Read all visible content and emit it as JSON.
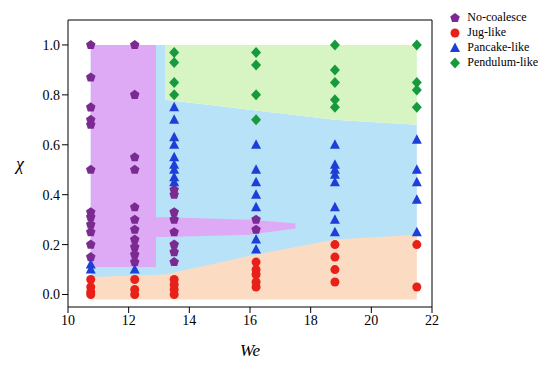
{
  "chart_data": {
    "type": "scatter",
    "x_label": "We",
    "y_label": "χ",
    "xlim": [
      10,
      22
    ],
    "xticks": [
      10,
      12,
      14,
      16,
      18,
      20,
      22
    ],
    "ylim": [
      -0.05,
      1.1
    ],
    "yticks": [
      {
        "value": 0,
        "label": "0.0"
      },
      {
        "value": 0.2,
        "label": "0.2"
      },
      {
        "value": 0.4,
        "label": "0.4"
      },
      {
        "value": 0.6,
        "label": "0.6"
      },
      {
        "value": 0.8,
        "label": "0.8"
      },
      {
        "value": 1,
        "label": "1.0"
      }
    ],
    "grid": false,
    "legend": "top-right",
    "series": [
      {
        "name": "No-coalesce",
        "color": "#7a2a90",
        "marker": "pentagon",
        "x": [
          10.75,
          10.75,
          10.75,
          10.75,
          10.75,
          10.75,
          10.75,
          10.75,
          10.75,
          10.75,
          10.75,
          10.75,
          12.2,
          12.2,
          12.2,
          12.2,
          12.2,
          12.2,
          12.2,
          12.2,
          12.2,
          12.2,
          12.2,
          13.5,
          13.5,
          13.5,
          13.5,
          13.5,
          13.5,
          13.5,
          13.5,
          16.2,
          16.2
        ],
        "values": [
          1.0,
          0.87,
          0.75,
          0.7,
          0.68,
          0.5,
          0.33,
          0.31,
          0.28,
          0.25,
          0.2,
          0.15,
          1.0,
          0.8,
          0.55,
          0.5,
          0.35,
          0.3,
          0.26,
          0.22,
          0.19,
          0.16,
          0.13,
          0.42,
          0.4,
          0.33,
          0.3,
          0.25,
          0.2,
          0.17,
          0.13,
          0.3,
          0.26
        ],
        "region": {
          "color": "#deaaf5",
          "x": [
            10.75,
            12.9,
            12.9,
            13.2,
            16,
            17.5
          ],
          "values": [
            [
              0.11,
              1.0
            ],
            [
              0.11,
              1.0
            ],
            [
              0.23,
              0.31
            ],
            [
              0.23,
              0.31
            ],
            [
              0.24,
              0.3
            ],
            [
              0.265,
              0.285
            ]
          ]
        }
      },
      {
        "name": "Jug-like",
        "color": "#e8201a",
        "marker": "circle",
        "x": [
          10.75,
          10.75,
          10.75,
          10.75,
          12.2,
          12.2,
          12.2,
          13.5,
          13.5,
          13.5,
          13.5,
          16.2,
          16.2,
          16.2,
          16.2,
          16.2,
          18.8,
          18.8,
          18.8,
          18.8,
          21.5,
          21.5
        ],
        "values": [
          0.06,
          0.03,
          0.01,
          0.0,
          0.06,
          0.02,
          0.0,
          0.06,
          0.04,
          0.02,
          0.0,
          0.13,
          0.1,
          0.08,
          0.05,
          0.03,
          0.2,
          0.15,
          0.1,
          0.05,
          0.2,
          0.03
        ],
        "region": {
          "color": "#fbdcc3",
          "x": [
            10.75,
            13.2,
            16,
            18.8,
            21.5
          ],
          "values": [
            [
              -0.02,
              0.07
            ],
            [
              -0.02,
              0.08
            ],
            [
              -0.02,
              0.155
            ],
            [
              -0.02,
              0.22
            ],
            [
              -0.02,
              0.24
            ]
          ]
        }
      },
      {
        "name": "Pancake-like",
        "color": "#1d3fd8",
        "marker": "triangle",
        "x": [
          10.75,
          10.75,
          12.2,
          13.5,
          13.5,
          13.5,
          13.5,
          13.5,
          13.5,
          13.5,
          13.5,
          13.5,
          16.2,
          16.2,
          16.2,
          16.2,
          16.2,
          16.2,
          16.2,
          18.8,
          18.8,
          18.8,
          18.8,
          18.8,
          18.8,
          18.8,
          18.8,
          21.5,
          21.5,
          21.5,
          21.5,
          21.5
        ],
        "values": [
          0.12,
          0.1,
          0.1,
          0.75,
          0.7,
          0.63,
          0.6,
          0.55,
          0.52,
          0.5,
          0.47,
          0.45,
          0.6,
          0.5,
          0.45,
          0.4,
          0.35,
          0.22,
          0.18,
          0.6,
          0.52,
          0.5,
          0.48,
          0.45,
          0.35,
          0.3,
          0.25,
          0.62,
          0.5,
          0.45,
          0.38,
          0.25
        ],
        "region": {
          "color": "#b8e2f8",
          "x": [
            10.75,
            13.2,
            13.2,
            16,
            18.8,
            21.5
          ],
          "values": [
            [
              0.06,
              1.0
            ],
            [
              0.07,
              1.0
            ],
            [
              0.07,
              0.78
            ],
            [
              0.15,
              0.74
            ],
            [
              0.21,
              0.7
            ],
            [
              0.23,
              0.68
            ]
          ]
        }
      },
      {
        "name": "Pendulum-like",
        "color": "#169a3c",
        "marker": "diamond",
        "x": [
          13.5,
          13.5,
          13.5,
          13.5,
          16.2,
          16.2,
          16.2,
          16.2,
          18.8,
          18.8,
          18.8,
          18.8,
          18.8,
          21.5,
          21.5,
          21.5,
          21.5
        ],
        "values": [
          0.97,
          0.93,
          0.85,
          0.8,
          0.97,
          0.92,
          0.8,
          0.7,
          1.0,
          0.9,
          0.85,
          0.78,
          0.75,
          1.0,
          0.85,
          0.82,
          0.75
        ],
        "region": {
          "color": "#d6f5c3",
          "x": [
            13.2,
            16,
            18.8,
            21.5
          ],
          "values": [
            [
              0.78,
              1.0
            ],
            [
              0.74,
              1.0
            ],
            [
              0.7,
              1.0
            ],
            [
              0.68,
              1.0
            ]
          ]
        }
      }
    ]
  }
}
